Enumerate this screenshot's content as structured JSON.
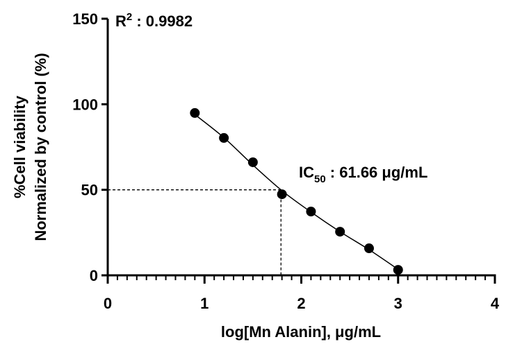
{
  "chart_data": {
    "type": "scatter",
    "x": [
      0.9,
      1.2,
      1.5,
      1.8,
      2.1,
      2.4,
      2.7,
      3.0
    ],
    "values": [
      94.9,
      80.3,
      66.1,
      47.4,
      37.3,
      25.5,
      15.8,
      3.2
    ],
    "color": "#000000",
    "fit": {
      "x": [
        0.9,
        1.2,
        1.5,
        1.8,
        2.1,
        2.4,
        2.7,
        3.0
      ],
      "values": [
        94,
        80.5,
        64.5,
        49.5,
        37,
        25.5,
        15,
        3.5
      ]
    },
    "ic50_point": {
      "x": 1.79,
      "y": 50
    },
    "xlim": [
      0,
      4
    ],
    "xticks": [
      0,
      1,
      2,
      3,
      4
    ],
    "x_minor_divisions": 10,
    "ylim": [
      0,
      150
    ],
    "yticks": [
      0,
      50,
      100,
      150
    ],
    "xlabel": "log[Mn Alanin], μg/mL",
    "ylabel": [
      "%Cell viability",
      "Normalized by control (%)"
    ],
    "r2_annotation": {
      "base": "R",
      "sup": "2",
      "text": " : 0.9982"
    },
    "ic50_annotation": {
      "base": "IC",
      "sub": "50",
      "text": " : 61.66 μg/mL"
    }
  }
}
